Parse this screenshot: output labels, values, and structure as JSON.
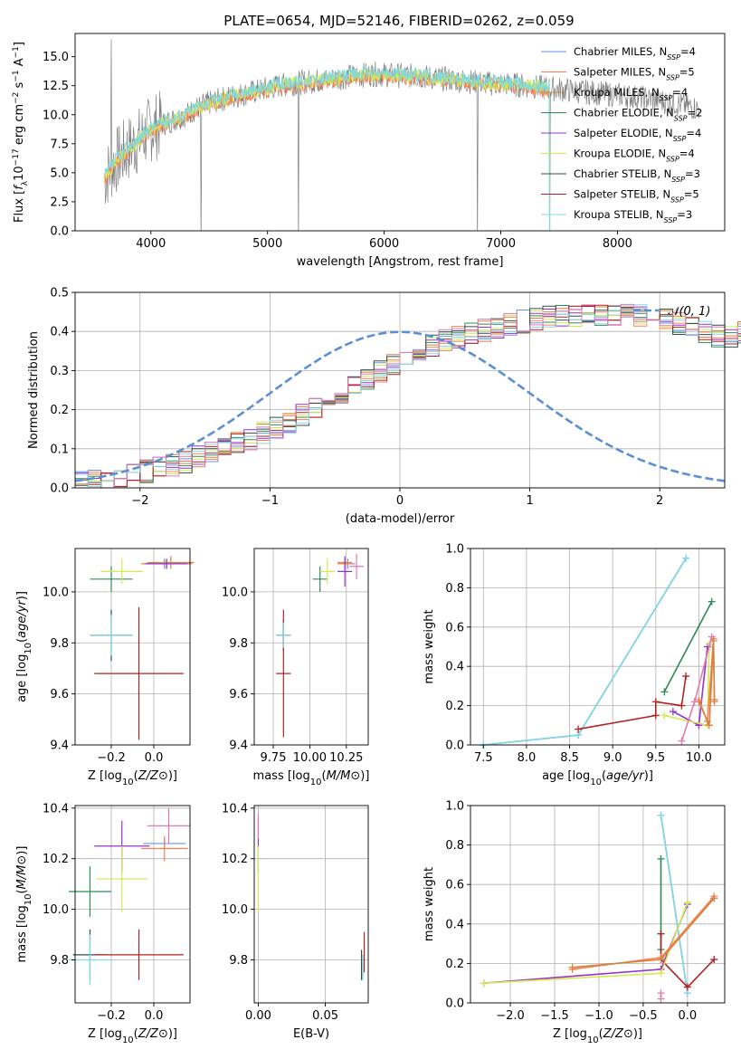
{
  "figure_title": "PLATE=0654, MJD=52146, FIBERID=0262, z=0.059",
  "colors": {
    "Chabrier MILES": "#6495ed",
    "Salpeter MILES": "#ff7f50",
    "Kroupa MILES": "#cd853f",
    "Chabrier ELODIE": "#2e8b57",
    "Salpeter ELODIE": "#9932cc",
    "Kroupa ELODIE": "#d4e84f",
    "Chabrier STELIB": "#2f4f4f",
    "Salpeter STELIB": "#b22222",
    "Kroupa STELIB": "#80d8e0",
    "Pink": "#e07ab0",
    "data": "#808080",
    "gaussian": "#5b8fd4"
  },
  "chart_data": [
    {
      "id": "spectrum",
      "type": "line",
      "title": "PLATE=0654, MJD=52146, FIBERID=0262, z=0.059",
      "xlabel": "wavelength [Angstrom, rest frame]",
      "ylabel": "Flux [f_λ 10^-17 erg cm^-2 s^-1 A^-1]",
      "xlim": [
        3350,
        8920
      ],
      "ylim": [
        0,
        17
      ],
      "xticks": [
        "4000",
        "5000",
        "6000",
        "7000",
        "8000"
      ],
      "yticks": [
        "0.0",
        "2.5",
        "5.0",
        "7.5",
        "10.0",
        "12.5",
        "15.0"
      ],
      "legend_position": "top-right",
      "legend": [
        {
          "name": "Chabrier MILES",
          "nssp": "4"
        },
        {
          "name": "Salpeter MILES",
          "nssp": "5"
        },
        {
          "name": "Kroupa MILES",
          "nssp": "4"
        },
        {
          "name": "Chabrier ELODIE",
          "nssp": "2"
        },
        {
          "name": "Salpeter ELODIE",
          "nssp": "4"
        },
        {
          "name": "Kroupa ELODIE",
          "nssp": "4"
        },
        {
          "name": "Chabrier STELIB",
          "nssp": "3"
        },
        {
          "name": "Salpeter STELIB",
          "nssp": "5"
        },
        {
          "name": "Kroupa STELIB",
          "nssp": "3"
        }
      ],
      "continuum": {
        "x": [
          3600,
          3700,
          3800,
          3900,
          4000,
          4100,
          4200,
          4300,
          4400,
          4500,
          4700,
          4900,
          5100,
          5300,
          5500,
          5700,
          5900,
          6100,
          6300,
          6500,
          6700,
          6900,
          7100,
          7300,
          7500,
          7700,
          7900,
          8100,
          8300,
          8500,
          8700
        ],
        "y": [
          4.5,
          6.0,
          7.0,
          7.8,
          8.8,
          9.2,
          9.6,
          10.0,
          10.6,
          11.0,
          11.6,
          12.0,
          12.5,
          12.8,
          13.0,
          13.3,
          13.5,
          13.4,
          13.3,
          13.1,
          12.9,
          12.7,
          12.6,
          12.4,
          12.2,
          12.0,
          11.8,
          11.6,
          11.3,
          11.0,
          10.5
        ]
      }
    },
    {
      "id": "residuals",
      "type": "histogram",
      "xlabel": "(data-model)/error",
      "ylabel": "Normed distribution",
      "xlim": [
        -2.5,
        2.5
      ],
      "ylim": [
        0,
        0.5
      ],
      "xticks": [
        "−2",
        "−1",
        "0",
        "1",
        "2"
      ],
      "yticks": [
        "0.0",
        "0.1",
        "0.2",
        "0.3",
        "0.4",
        "0.5"
      ],
      "legend": "𝒩(0, 1)",
      "legend_position": "top-right",
      "bin_width": 0.1,
      "envelope": [
        0.018,
        0.02,
        0.025,
        0.03,
        0.035,
        0.042,
        0.05,
        0.058,
        0.067,
        0.077,
        0.09,
        0.1,
        0.113,
        0.125,
        0.14,
        0.155,
        0.17,
        0.188,
        0.205,
        0.225,
        0.245,
        0.262,
        0.282,
        0.3,
        0.318,
        0.335,
        0.35,
        0.362,
        0.375,
        0.385,
        0.395,
        0.402,
        0.41,
        0.418,
        0.425,
        0.43,
        0.435,
        0.438,
        0.44,
        0.442,
        0.444,
        0.445,
        0.444,
        0.44,
        0.435,
        0.428,
        0.42,
        0.41,
        0.4,
        0.39
      ]
    },
    {
      "id": "age-vs-Z",
      "type": "errorbar",
      "xlabel": "Z [log10(Z/Z⊙)]",
      "ylabel": "age [log10(age/yr)]",
      "xlim": [
        -0.37,
        0.17
      ],
      "ylim": [
        9.4,
        10.17
      ],
      "xticks": [
        "−0.2",
        "0.0"
      ],
      "yticks": [
        "9.4",
        "9.6",
        "9.8",
        "10.0"
      ],
      "points": [
        {
          "model": "Chabrier MILES",
          "x": 0.05,
          "y": 10.11,
          "xerr": 0.1,
          "yerr": 0.02
        },
        {
          "model": "Salpeter MILES",
          "x": 0.06,
          "y": 10.11,
          "xerr": 0.12,
          "yerr": 0.02
        },
        {
          "model": "Kroupa MILES",
          "x": 0.08,
          "y": 10.115,
          "xerr": 0.11,
          "yerr": 0.025
        },
        {
          "model": "Chabrier ELODIE",
          "x": -0.2,
          "y": 10.05,
          "xerr": 0.1,
          "yerr": 0.05
        },
        {
          "model": "Salpeter ELODIE",
          "x": 0.06,
          "y": 10.11,
          "xerr": 0.1,
          "yerr": 0.02
        },
        {
          "model": "Kroupa ELODIE",
          "x": -0.15,
          "y": 10.08,
          "xerr": 0.1,
          "yerr": 0.05
        },
        {
          "model": "Chabrier STELIB",
          "x": -0.2,
          "y": 9.83,
          "xerr": 0.1,
          "yerr": 0.1
        },
        {
          "model": "Salpeter STELIB",
          "x": -0.07,
          "y": 9.68,
          "xerr": 0.21,
          "yerr": 0.26
        },
        {
          "model": "Kroupa STELIB",
          "x": -0.2,
          "y": 9.83,
          "xerr": 0.1,
          "yerr": 0.08
        }
      ]
    },
    {
      "id": "age-vs-mass",
      "type": "errorbar",
      "xlabel": "mass [log10(M/M⊙)]",
      "ylabel": "",
      "xlim": [
        9.62,
        10.4
      ],
      "ylim": [
        9.4,
        10.17
      ],
      "xticks": [
        "9.75",
        "10.00",
        "10.25"
      ],
      "yticks": [
        "9.4",
        "9.6",
        "9.8",
        "10.0"
      ],
      "points": [
        {
          "model": "Chabrier MILES",
          "x": 10.26,
          "y": 10.11,
          "xerr": 0.05,
          "yerr": 0.02
        },
        {
          "model": "Salpeter MILES",
          "x": 10.24,
          "y": 10.11,
          "xerr": 0.05,
          "yerr": 0.02
        },
        {
          "model": "Kroupa MILES",
          "x": 10.24,
          "y": 10.115,
          "xerr": 0.05,
          "yerr": 0.02
        },
        {
          "model": "Chabrier ELODIE",
          "x": 10.07,
          "y": 10.05,
          "xerr": 0.05,
          "yerr": 0.05
        },
        {
          "model": "Salpeter ELODIE",
          "x": 10.24,
          "y": 10.08,
          "xerr": 0.05,
          "yerr": 0.06
        },
        {
          "model": "Kroupa ELODIE",
          "x": 10.12,
          "y": 10.08,
          "xerr": 0.05,
          "yerr": 0.05
        },
        {
          "model": "Chabrier STELIB",
          "x": 9.82,
          "y": 9.83,
          "xerr": 0.05,
          "yerr": 0.06
        },
        {
          "model": "Salpeter STELIB",
          "x": 9.82,
          "y": 9.68,
          "xerr": 0.05,
          "yerr": 0.25
        },
        {
          "model": "Kroupa STELIB",
          "x": 9.82,
          "y": 9.83,
          "xerr": 0.05,
          "yerr": 0.05
        },
        {
          "model": "Pink",
          "x": 10.32,
          "y": 10.1,
          "xerr": 0.05,
          "yerr": 0.05
        }
      ]
    },
    {
      "id": "weights-vs-age",
      "type": "line",
      "xlabel": "age [log10(age/yr)]",
      "ylabel": "mass weight",
      "xlim": [
        7.35,
        10.3
      ],
      "ylim": [
        0,
        1.0
      ],
      "xticks": [
        "7.5",
        "8.0",
        "8.5",
        "9.0",
        "9.5",
        "10.0"
      ],
      "yticks": [
        "0.0",
        "0.2",
        "0.4",
        "0.6",
        "0.8",
        "1.0"
      ],
      "series": [
        {
          "model": "Chabrier MILES",
          "x": [
            7.5,
            8.6,
            9.85
          ],
          "y": [
            0.0,
            0.05,
            0.95
          ]
        },
        {
          "model": "Kroupa STELIB",
          "x": [
            7.5,
            8.6,
            9.85
          ],
          "y": [
            0.0,
            0.05,
            0.95
          ]
        },
        {
          "model": "Chabrier ELODIE",
          "x": [
            9.6,
            10.15
          ],
          "y": [
            0.27,
            0.73
          ]
        },
        {
          "model": "Salpeter STELIB",
          "x": [
            8.6,
            9.5,
            9.5,
            9.8,
            9.85
          ],
          "y": [
            0.08,
            0.15,
            0.22,
            0.2,
            0.35
          ]
        },
        {
          "model": "Salpeter ELODIE",
          "x": [
            9.7,
            10.0,
            10.1
          ],
          "y": [
            0.17,
            0.1,
            0.5
          ]
        },
        {
          "model": "Kroupa ELODIE",
          "x": [
            9.6,
            10.1,
            10.12
          ],
          "y": [
            0.15,
            0.1,
            0.51
          ]
        },
        {
          "model": "Salpeter MILES",
          "x": [
            10.0,
            10.1,
            10.17,
            10.18
          ],
          "y": [
            0.23,
            0.12,
            0.54,
            0.22
          ]
        },
        {
          "model": "Kroupa MILES",
          "x": [
            10.0,
            10.12,
            10.17,
            10.18
          ],
          "y": [
            0.22,
            0.1,
            0.53,
            0.23
          ]
        },
        {
          "model": "Pink",
          "x": [
            9.8,
            9.95,
            10.15
          ],
          "y": [
            0.02,
            0.22,
            0.55
          ]
        }
      ]
    },
    {
      "id": "mass-vs-Z",
      "type": "errorbar",
      "xlabel": "Z [log10(Z/Z⊙)]",
      "ylabel": "mass [log10(M/M⊙)]",
      "xlim": [
        -0.37,
        0.17
      ],
      "ylim": [
        9.63,
        10.41
      ],
      "xticks": [
        "−0.2",
        "0.0"
      ],
      "yticks": [
        "9.8",
        "10.0",
        "10.2",
        "10.4"
      ],
      "points": [
        {
          "model": "Chabrier MILES",
          "x": 0.05,
          "y": 10.26,
          "xerr": 0.1,
          "yerr": 0.02
        },
        {
          "model": "Salpeter MILES",
          "x": 0.05,
          "y": 10.24,
          "xerr": 0.11,
          "yerr": 0.05
        },
        {
          "model": "Pink",
          "x": 0.07,
          "y": 10.33,
          "xerr": 0.1,
          "yerr": 0.07
        },
        {
          "model": "Salpeter ELODIE",
          "x": -0.15,
          "y": 10.25,
          "xerr": 0.13,
          "yerr": 0.1
        },
        {
          "model": "Kroupa ELODIE",
          "x": -0.15,
          "y": 10.12,
          "xerr": 0.12,
          "yerr": 0.13
        },
        {
          "model": "Chabrier ELODIE",
          "x": -0.3,
          "y": 10.07,
          "xerr": 0.1,
          "yerr": 0.1
        },
        {
          "model": "Chabrier STELIB",
          "x": -0.3,
          "y": 9.82,
          "xerr": 0.08,
          "yerr": 0.1
        },
        {
          "model": "Salpeter STELIB",
          "x": -0.07,
          "y": 9.82,
          "xerr": 0.21,
          "yerr": 0.1
        },
        {
          "model": "Kroupa STELIB",
          "x": -0.3,
          "y": 9.8,
          "xerr": 0.1,
          "yerr": 0.1
        }
      ]
    },
    {
      "id": "mass-vs-EBV",
      "type": "errorbar",
      "xlabel": "E(B-V)",
      "ylabel": "",
      "xlim": [
        -0.003,
        0.082
      ],
      "ylim": [
        9.63,
        10.41
      ],
      "xticks": [
        "0.00",
        "0.05"
      ],
      "yticks": [
        "9.8",
        "10.0",
        "10.2",
        "10.4"
      ],
      "points": [
        {
          "model": "Salpeter ELODIE",
          "x": 0.0,
          "y": 10.25,
          "xerr": 0.0,
          "yerr": 0.11
        },
        {
          "model": "Kroupa ELODIE",
          "x": 0.0,
          "y": 10.12,
          "xerr": 0.0,
          "yerr": 0.13
        },
        {
          "model": "Pink",
          "x": 0.0,
          "y": 10.33,
          "xerr": 0.0,
          "yerr": 0.05
        },
        {
          "model": "Chabrier STELIB",
          "x": 0.077,
          "y": 9.78,
          "xerr": 0.0,
          "yerr": 0.06
        },
        {
          "model": "Salpeter STELIB",
          "x": 0.079,
          "y": 9.83,
          "xerr": 0.0,
          "yerr": 0.08
        },
        {
          "model": "Kroupa STELIB",
          "x": 0.078,
          "y": 9.77,
          "xerr": 0.0,
          "yerr": 0.05
        }
      ]
    },
    {
      "id": "weights-vs-Z",
      "type": "line",
      "xlabel": "Z [log10(Z/Z⊙)]",
      "ylabel": "mass weight",
      "xlim": [
        -2.45,
        0.42
      ],
      "ylim": [
        0,
        1.0
      ],
      "xticks": [
        "−2.0",
        "−1.5",
        "−1.0",
        "−0.5",
        "0.0"
      ],
      "yticks": [
        "0.0",
        "0.2",
        "0.4",
        "0.6",
        "0.8",
        "1.0"
      ],
      "series": [
        {
          "model": "Chabrier MILES",
          "x": [
            -0.3,
            0.0
          ],
          "y": [
            0.95,
            0.05
          ]
        },
        {
          "model": "Kroupa STELIB",
          "x": [
            -0.3,
            0.0
          ],
          "y": [
            0.95,
            0.05
          ]
        },
        {
          "model": "Chabrier ELODIE",
          "x": [
            -0.3,
            -0.3
          ],
          "y": [
            0.73,
            0.27
          ]
        },
        {
          "model": "Salpeter STELIB",
          "x": [
            -0.3,
            -0.3,
            0.0,
            0.3
          ],
          "y": [
            0.35,
            0.22,
            0.08,
            0.22
          ]
        },
        {
          "model": "Salpeter ELODIE",
          "x": [
            -2.3,
            -0.3,
            0.0
          ],
          "y": [
            0.1,
            0.17,
            0.5
          ]
        },
        {
          "model": "Kroupa ELODIE",
          "x": [
            -2.3,
            -0.3,
            0.0
          ],
          "y": [
            0.1,
            0.15,
            0.51
          ]
        },
        {
          "model": "Salpeter MILES",
          "x": [
            -1.3,
            -0.3,
            0.3
          ],
          "y": [
            0.17,
            0.23,
            0.54
          ]
        },
        {
          "model": "Kroupa MILES",
          "x": [
            -1.3,
            -0.3,
            0.3
          ],
          "y": [
            0.18,
            0.22,
            0.53
          ]
        },
        {
          "model": "Pink",
          "x": [
            -0.3,
            -0.3
          ],
          "y": [
            0.02,
            0.05
          ]
        }
      ]
    }
  ]
}
